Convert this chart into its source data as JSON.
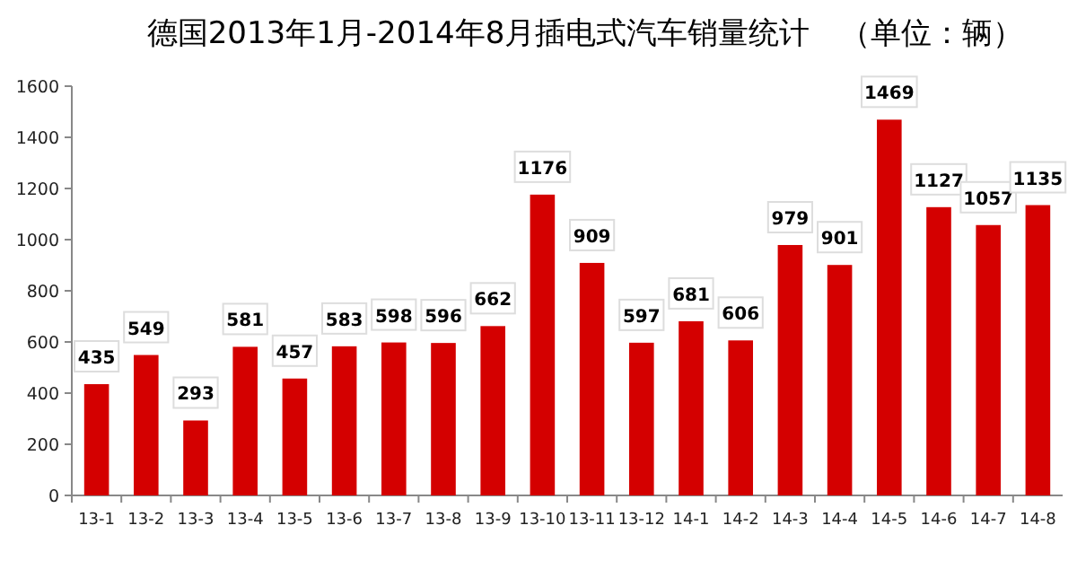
{
  "chart_data": {
    "type": "bar",
    "title": "德国2013年1月-2014年8月插电式汽车销量统计　（单位：辆）",
    "categories": [
      "13-1",
      "13-2",
      "13-3",
      "13-4",
      "13-5",
      "13-6",
      "13-7",
      "13-8",
      "13-9",
      "13-10",
      "13-11",
      "13-12",
      "14-1",
      "14-2",
      "14-3",
      "14-4",
      "14-5",
      "14-6",
      "14-7",
      "14-8"
    ],
    "values": [
      435,
      549,
      293,
      581,
      457,
      583,
      598,
      596,
      662,
      1176,
      909,
      597,
      681,
      606,
      979,
      901,
      1469,
      1127,
      1057,
      1135
    ],
    "color": "#d40000",
    "ylim": [
      0,
      1600
    ],
    "yticks": [
      0,
      200,
      400,
      600,
      800,
      1000,
      1200,
      1400,
      1600
    ],
    "data_labels": true
  }
}
